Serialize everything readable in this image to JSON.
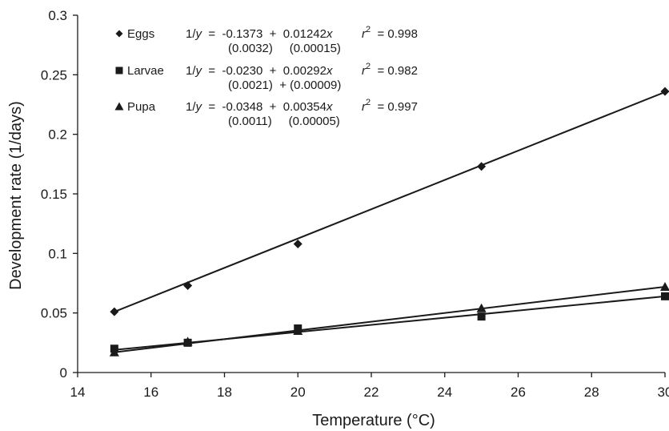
{
  "chart_data": {
    "type": "scatter",
    "xlabel": "Temperature (°C)",
    "ylabel": "Development rate (1/days)",
    "xlim": [
      14,
      30
    ],
    "ylim": [
      0,
      0.3
    ],
    "x_ticks": [
      "14",
      "16",
      "18",
      "20",
      "22",
      "24",
      "26",
      "28",
      "30"
    ],
    "y_ticks": [
      "0",
      "0.05",
      "0.1",
      "0.15",
      "0.2",
      "0.25",
      "0.3"
    ],
    "grid": false,
    "legend_position": "top-left",
    "series": [
      {
        "name": "Eggs",
        "marker": "diamond",
        "x": [
          15,
          17,
          20,
          25,
          30
        ],
        "y": [
          0.051,
          0.073,
          0.108,
          0.173,
          0.236
        ],
        "fit_line": {
          "x": [
            15,
            30
          ],
          "y": [
            0.051,
            0.2355
          ]
        },
        "eq": {
          "lhs": "1/y",
          "rhs": "=  -0.1373  +  0.01242x",
          "r2": "= 0.998",
          "se": "(0.0032)     (0.00015)"
        }
      },
      {
        "name": "Larvae",
        "marker": "square",
        "x": [
          15,
          17,
          20,
          25,
          30
        ],
        "y": [
          0.02,
          0.025,
          0.037,
          0.047,
          0.064
        ],
        "fit_line": {
          "x": [
            15,
            30
          ],
          "y": [
            0.019,
            0.064
          ]
        },
        "eq": {
          "lhs": "1/y",
          "rhs": "=  -0.0230  +  0.00292x",
          "r2": "= 0.982",
          "se": "(0.0021)  + (0.00009)"
        }
      },
      {
        "name": "Pupa",
        "marker": "triangle",
        "x": [
          15,
          17,
          20,
          25,
          30
        ],
        "y": [
          0.017,
          0.026,
          0.035,
          0.054,
          0.072
        ],
        "fit_line": {
          "x": [
            15,
            30
          ],
          "y": [
            0.017,
            0.072
          ]
        },
        "eq": {
          "lhs": "1/y",
          "rhs": "=  -0.0348  +  0.00354x",
          "r2": "= 0.997",
          "se": "(0.0011)     (0.00005)"
        }
      }
    ],
    "colors": {
      "line": "#1a1a1a",
      "marker": "#1a1a1a"
    }
  }
}
